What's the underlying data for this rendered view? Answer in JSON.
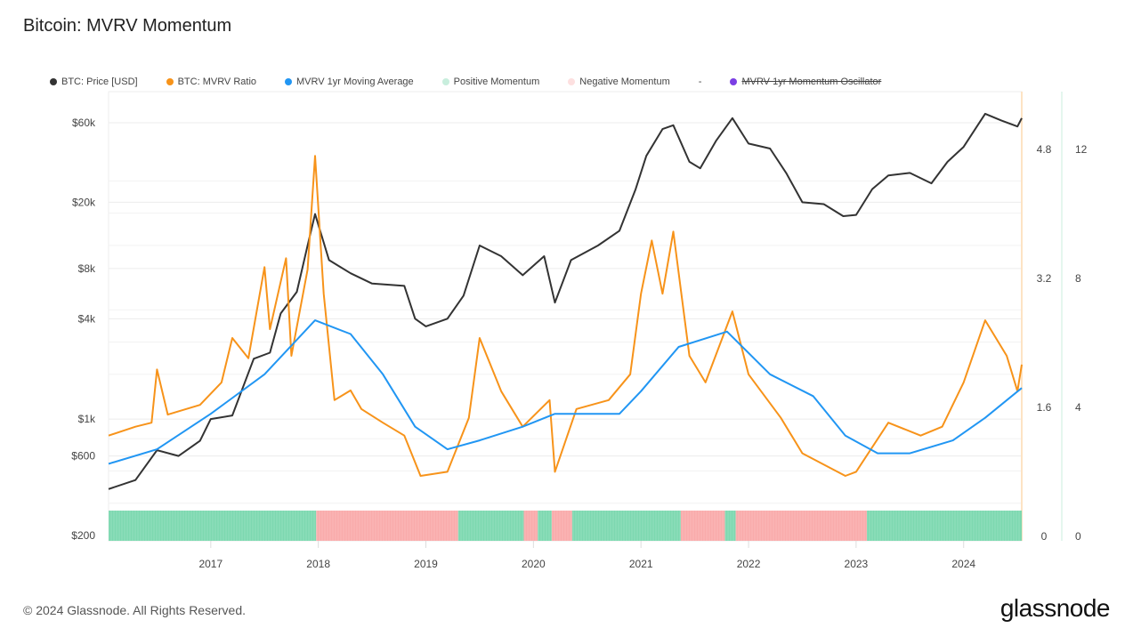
{
  "title": "Bitcoin: MVRV Momentum",
  "footer": "© 2024 Glassnode. All Rights Reserved.",
  "logo": "glassnode",
  "legend": [
    {
      "label": "BTC: Price [USD]",
      "color": "#333333"
    },
    {
      "label": "BTC: MVRV Ratio",
      "color": "#f7931a"
    },
    {
      "label": "MVRV 1yr Moving Average",
      "color": "#2196f3"
    },
    {
      "label": "Positive Momentum",
      "color": "#c8eedd"
    },
    {
      "label": "Negative Momentum",
      "color": "#fde0e0"
    },
    {
      "label": "-",
      "color": ""
    },
    {
      "label": "MVRV 1yr Momentum Oscillator",
      "color": "#7b3fe4",
      "disabled": true
    }
  ],
  "chart_data": {
    "type": "line",
    "title": "Bitcoin: MVRV Momentum",
    "x_ticks": [
      "2017",
      "2018",
      "2019",
      "2020",
      "2021",
      "2022",
      "2023",
      "2024"
    ],
    "xlim": [
      2016.05,
      2024.54
    ],
    "y_price": {
      "scale": "log",
      "ticks": [
        "$200",
        "$600",
        "$1k",
        "$4k",
        "$8k",
        "$20k",
        "$60k"
      ],
      "tick_values": [
        200,
        600,
        1000,
        4000,
        8000,
        20000,
        60000
      ]
    },
    "y_mvrv": {
      "ticks": [
        "0",
        "1.6",
        "3.2",
        "4.8"
      ],
      "ylim": [
        0,
        5.2
      ]
    },
    "y_oscillator": {
      "ticks": [
        "0",
        "4",
        "8",
        "12"
      ]
    },
    "series": [
      {
        "name": "BTC: Price [USD]",
        "color": "#333333",
        "axis": "price",
        "points": [
          [
            2016.05,
            380
          ],
          [
            2016.3,
            430
          ],
          [
            2016.5,
            650
          ],
          [
            2016.7,
            600
          ],
          [
            2016.9,
            740
          ],
          [
            2017.0,
            1000
          ],
          [
            2017.2,
            1050
          ],
          [
            2017.4,
            2300
          ],
          [
            2017.55,
            2500
          ],
          [
            2017.65,
            4300
          ],
          [
            2017.8,
            5800
          ],
          [
            2017.9,
            11000
          ],
          [
            2017.97,
            17000
          ],
          [
            2018.1,
            9000
          ],
          [
            2018.3,
            7500
          ],
          [
            2018.5,
            6500
          ],
          [
            2018.8,
            6300
          ],
          [
            2018.9,
            4000
          ],
          [
            2019.0,
            3600
          ],
          [
            2019.2,
            4000
          ],
          [
            2019.35,
            5500
          ],
          [
            2019.5,
            11000
          ],
          [
            2019.7,
            9500
          ],
          [
            2019.9,
            7300
          ],
          [
            2020.1,
            9500
          ],
          [
            2020.2,
            5000
          ],
          [
            2020.35,
            9000
          ],
          [
            2020.6,
            11000
          ],
          [
            2020.8,
            13500
          ],
          [
            2020.95,
            24000
          ],
          [
            2021.05,
            38000
          ],
          [
            2021.2,
            55000
          ],
          [
            2021.3,
            58000
          ],
          [
            2021.45,
            35000
          ],
          [
            2021.55,
            32000
          ],
          [
            2021.7,
            47000
          ],
          [
            2021.85,
            64000
          ],
          [
            2022.0,
            45000
          ],
          [
            2022.2,
            42000
          ],
          [
            2022.35,
            30000
          ],
          [
            2022.5,
            20000
          ],
          [
            2022.7,
            19500
          ],
          [
            2022.88,
            16500
          ],
          [
            2023.0,
            16800
          ],
          [
            2023.15,
            24000
          ],
          [
            2023.3,
            29000
          ],
          [
            2023.5,
            30000
          ],
          [
            2023.7,
            26000
          ],
          [
            2023.85,
            35000
          ],
          [
            2024.0,
            43000
          ],
          [
            2024.2,
            68000
          ],
          [
            2024.35,
            62000
          ],
          [
            2024.5,
            57000
          ],
          [
            2024.54,
            64000
          ]
        ]
      },
      {
        "name": "BTC: MVRV Ratio",
        "color": "#f7931a",
        "axis": "mvrv",
        "points": [
          [
            2016.05,
            1.24
          ],
          [
            2016.3,
            1.35
          ],
          [
            2016.45,
            1.4
          ],
          [
            2016.5,
            2.06
          ],
          [
            2016.6,
            1.5
          ],
          [
            2016.9,
            1.62
          ],
          [
            2017.1,
            1.9
          ],
          [
            2017.2,
            2.45
          ],
          [
            2017.35,
            2.2
          ],
          [
            2017.5,
            3.33
          ],
          [
            2017.55,
            2.56
          ],
          [
            2017.7,
            3.44
          ],
          [
            2017.75,
            2.23
          ],
          [
            2017.9,
            3.3
          ],
          [
            2017.97,
            4.71
          ],
          [
            2018.05,
            3.0
          ],
          [
            2018.15,
            1.68
          ],
          [
            2018.3,
            1.8
          ],
          [
            2018.4,
            1.57
          ],
          [
            2018.6,
            1.4
          ],
          [
            2018.8,
            1.24
          ],
          [
            2018.95,
            0.74
          ],
          [
            2019.2,
            0.79
          ],
          [
            2019.4,
            1.46
          ],
          [
            2019.5,
            2.45
          ],
          [
            2019.7,
            1.79
          ],
          [
            2019.9,
            1.35
          ],
          [
            2020.15,
            1.68
          ],
          [
            2020.2,
            0.79
          ],
          [
            2020.4,
            1.57
          ],
          [
            2020.7,
            1.68
          ],
          [
            2020.9,
            2.0
          ],
          [
            2021.0,
            3.0
          ],
          [
            2021.1,
            3.66
          ],
          [
            2021.2,
            3.0
          ],
          [
            2021.3,
            3.77
          ],
          [
            2021.45,
            2.23
          ],
          [
            2021.6,
            1.9
          ],
          [
            2021.85,
            2.78
          ],
          [
            2022.0,
            2.0
          ],
          [
            2022.3,
            1.46
          ],
          [
            2022.5,
            1.02
          ],
          [
            2022.9,
            0.74
          ],
          [
            2023.0,
            0.79
          ],
          [
            2023.3,
            1.4
          ],
          [
            2023.6,
            1.24
          ],
          [
            2023.8,
            1.35
          ],
          [
            2024.0,
            1.9
          ],
          [
            2024.2,
            2.67
          ],
          [
            2024.4,
            2.23
          ],
          [
            2024.5,
            1.79
          ],
          [
            2024.54,
            2.12
          ]
        ]
      },
      {
        "name": "MVRV 1yr Moving Average",
        "color": "#2196f3",
        "axis": "mvrv",
        "points": [
          [
            2016.05,
            0.89
          ],
          [
            2016.5,
            1.07
          ],
          [
            2017.0,
            1.51
          ],
          [
            2017.5,
            2.0
          ],
          [
            2017.97,
            2.67
          ],
          [
            2018.3,
            2.5
          ],
          [
            2018.6,
            2.0
          ],
          [
            2018.9,
            1.35
          ],
          [
            2019.2,
            1.07
          ],
          [
            2019.5,
            1.18
          ],
          [
            2019.9,
            1.35
          ],
          [
            2020.2,
            1.51
          ],
          [
            2020.8,
            1.51
          ],
          [
            2021.0,
            1.79
          ],
          [
            2021.35,
            2.34
          ],
          [
            2021.8,
            2.53
          ],
          [
            2022.2,
            2.0
          ],
          [
            2022.6,
            1.73
          ],
          [
            2022.9,
            1.24
          ],
          [
            2023.2,
            1.02
          ],
          [
            2023.5,
            1.02
          ],
          [
            2023.9,
            1.18
          ],
          [
            2024.2,
            1.46
          ],
          [
            2024.54,
            1.83
          ]
        ]
      }
    ],
    "momentum_regimes": [
      {
        "type": "positive",
        "from": 2016.05,
        "to": 2017.98
      },
      {
        "type": "negative",
        "from": 2017.98,
        "to": 2019.3
      },
      {
        "type": "positive",
        "from": 2019.3,
        "to": 2019.91
      },
      {
        "type": "negative",
        "from": 2019.91,
        "to": 2020.04
      },
      {
        "type": "positive",
        "from": 2020.04,
        "to": 2020.17
      },
      {
        "type": "negative",
        "from": 2020.17,
        "to": 2020.36
      },
      {
        "type": "positive",
        "from": 2020.36,
        "to": 2021.37
      },
      {
        "type": "negative",
        "from": 2021.37,
        "to": 2021.78
      },
      {
        "type": "positive",
        "from": 2021.78,
        "to": 2021.88
      },
      {
        "type": "negative",
        "from": 2021.88,
        "to": 2023.1
      },
      {
        "type": "positive",
        "from": 2023.1,
        "to": 2024.54
      }
    ],
    "regime_colors": {
      "positive": "#7dd8b0",
      "negative": "#f9abab"
    },
    "grid": true
  }
}
